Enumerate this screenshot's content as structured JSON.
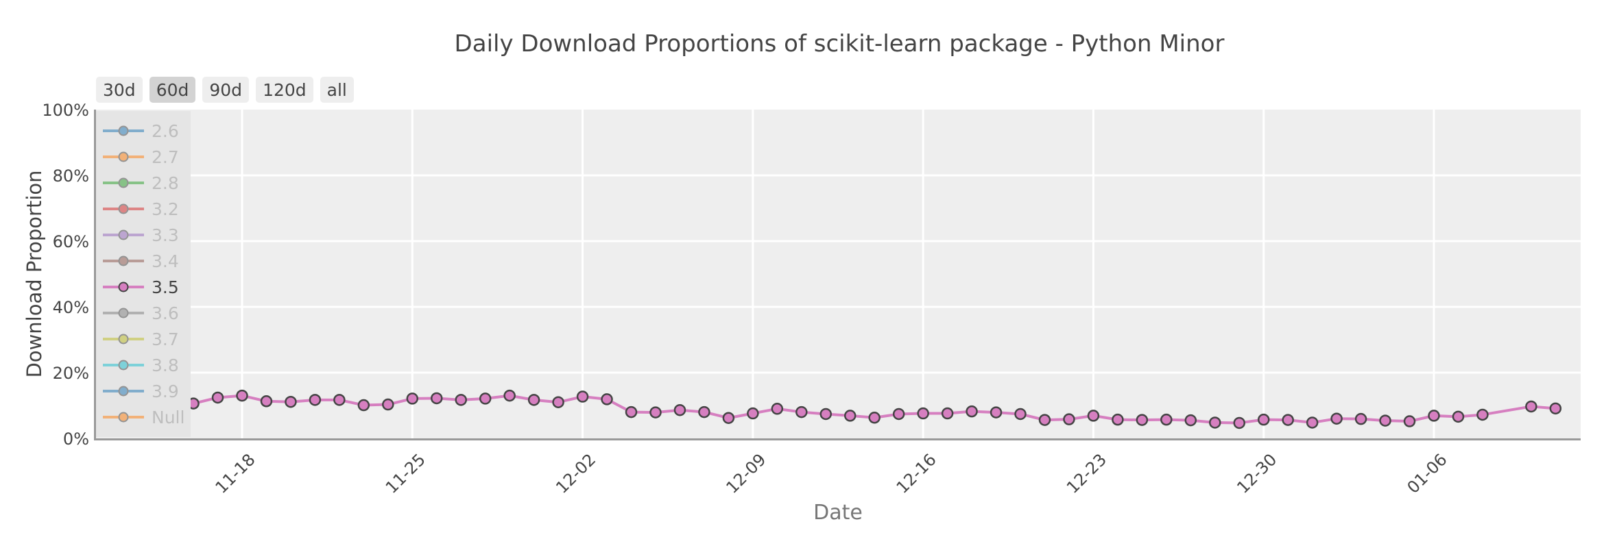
{
  "chart_data": {
    "type": "line",
    "title": "Daily Download Proportions of scikit-learn package - Python Minor",
    "xlabel": "Date",
    "ylabel": "Download Proportion",
    "ylim": [
      0,
      100
    ],
    "y_ticks": [
      "0%",
      "20%",
      "40%",
      "60%",
      "80%",
      "100%"
    ],
    "y_tick_values": [
      0,
      20,
      40,
      60,
      80,
      100
    ],
    "x_ticks": [
      "11-18",
      "11-25",
      "12-02",
      "12-09",
      "12-16",
      "12-23",
      "12-30",
      "01-06"
    ],
    "x_range_days": [
      -6.1,
      55.0
    ],
    "grid": true,
    "legend_position": "top-left inside",
    "legend": [
      {
        "name": "2.6",
        "color": "#1f77b4",
        "visible": false
      },
      {
        "name": "2.7",
        "color": "#ff7f0e",
        "visible": false
      },
      {
        "name": "2.8",
        "color": "#2ca02c",
        "visible": false
      },
      {
        "name": "3.2",
        "color": "#d62728",
        "visible": false
      },
      {
        "name": "3.3",
        "color": "#9467bd",
        "visible": false
      },
      {
        "name": "3.4",
        "color": "#8c564b",
        "visible": false
      },
      {
        "name": "3.5",
        "color": "#d67fc0",
        "visible": true
      },
      {
        "name": "3.6",
        "color": "#7f7f7f",
        "visible": false
      },
      {
        "name": "3.7",
        "color": "#bcbd22",
        "visible": false
      },
      {
        "name": "3.8",
        "color": "#17becf",
        "visible": false
      },
      {
        "name": "3.9",
        "color": "#1f77b4",
        "visible": false
      },
      {
        "name": "Null",
        "color": "#ff7f0e",
        "visible": false
      }
    ],
    "series": [
      {
        "name": "3.5",
        "color": "#d67fc0",
        "x": [
          "11-16",
          "11-17",
          "11-18",
          "11-19",
          "11-20",
          "11-21",
          "11-22",
          "11-23",
          "11-24",
          "11-25",
          "11-26",
          "11-27",
          "11-28",
          "11-29",
          "11-30",
          "12-01",
          "12-02",
          "12-03",
          "12-04",
          "12-05",
          "12-06",
          "12-07",
          "12-08",
          "12-09",
          "12-10",
          "12-11",
          "12-12",
          "12-13",
          "12-14",
          "12-15",
          "12-16",
          "12-17",
          "12-18",
          "12-19",
          "12-20",
          "12-21",
          "12-22",
          "12-23",
          "12-24",
          "12-25",
          "12-26",
          "12-27",
          "12-28",
          "12-29",
          "12-30",
          "12-31",
          "01-01",
          "01-02",
          "01-03",
          "01-04",
          "01-05",
          "01-06",
          "01-07",
          "01-08",
          "01-10",
          "01-11"
        ],
        "day_offset": [
          -2,
          -1,
          0,
          1,
          2,
          3,
          4,
          5,
          6,
          7,
          8,
          9,
          10,
          11,
          12,
          13,
          14,
          15,
          16,
          17,
          18,
          19,
          20,
          21,
          22,
          23,
          24,
          25,
          26,
          27,
          28,
          29,
          30,
          31,
          32,
          33,
          34,
          35,
          36,
          37,
          38,
          39,
          40,
          41,
          42,
          43,
          44,
          45,
          46,
          47,
          48,
          49,
          50,
          51,
          53,
          54
        ],
        "values": [
          10.6,
          12.4,
          13.0,
          11.3,
          11.1,
          11.7,
          11.7,
          10.1,
          10.3,
          12.1,
          12.2,
          11.7,
          12.1,
          13.0,
          11.7,
          11.0,
          12.7,
          11.9,
          8.0,
          7.9,
          8.6,
          8.0,
          6.2,
          7.6,
          9.0,
          8.0,
          7.4,
          6.9,
          6.3,
          7.4,
          7.6,
          7.6,
          8.2,
          7.9,
          7.4,
          5.6,
          5.8,
          6.9,
          5.7,
          5.6,
          5.7,
          5.5,
          4.8,
          4.7,
          5.7,
          5.6,
          4.8,
          6.0,
          5.9,
          5.4,
          5.2,
          6.9,
          6.6,
          7.2,
          9.7,
          9.1
        ]
      }
    ]
  },
  "controls": {
    "range_buttons": [
      {
        "label": "30d",
        "active": false
      },
      {
        "label": "60d",
        "active": true
      },
      {
        "label": "90d",
        "active": false
      },
      {
        "label": "120d",
        "active": false
      },
      {
        "label": "all",
        "active": false
      }
    ]
  },
  "colors": {
    "plot_bg": "#eeeeee",
    "grid": "#ffffff",
    "axis_line": "#999999",
    "legend_bg": "#e5e5e5",
    "marker_outline": "#444444"
  }
}
